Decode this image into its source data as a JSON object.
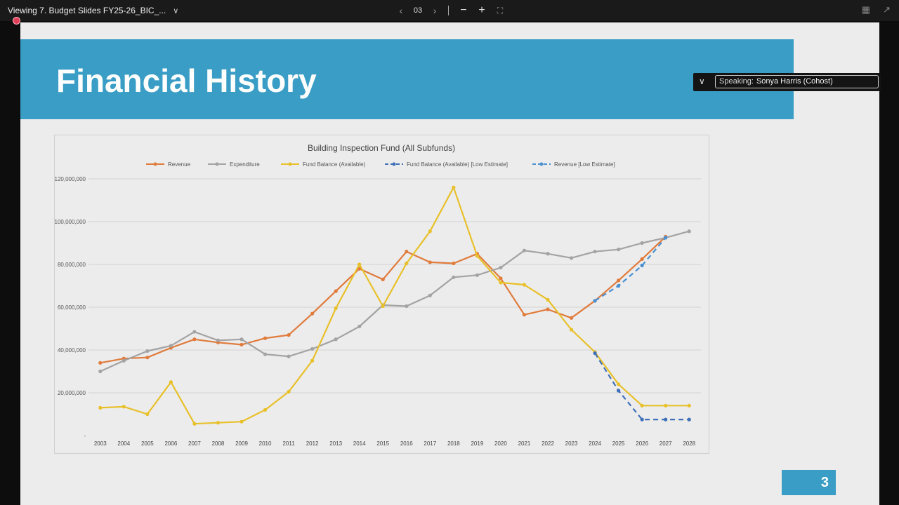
{
  "topbar": {
    "viewing_label": "Viewing 7. Budget Slides FY25-26_BIC_...",
    "page_number": "03",
    "prev_icon": "chevron-left-icon",
    "next_icon": "chevron-right-icon",
    "zoom_out_icon": "minus-icon",
    "zoom_in_icon": "plus-icon",
    "fit_icon": "fit-screen-icon"
  },
  "speaking": {
    "label": "Speaking:",
    "name": "Sonya Harris (Cohost)"
  },
  "slide": {
    "title": "Financial History",
    "page_number": "3"
  },
  "colors": {
    "banner": "#3a9dc6",
    "revenue": "#e07b3c",
    "expenditure": "#a3a3a3",
    "fund_balance": "#e8c02a",
    "fund_balance_low": "#3f6fb8",
    "revenue_low": "#4a90d0"
  },
  "chart_data": {
    "type": "line",
    "title": "Building Inspection Fund (All Subfunds)",
    "xlabel": "",
    "ylabel": "",
    "ylim": [
      0,
      120000000
    ],
    "yticks": [
      0,
      20000000,
      40000000,
      60000000,
      80000000,
      100000000,
      120000000
    ],
    "ytick_labels": [
      "-",
      "20,000,000",
      "40,000,000",
      "60,000,000",
      "80,000,000",
      "100,000,000",
      "120,000,000"
    ],
    "x": [
      "2003",
      "2004",
      "2005",
      "2006",
      "2007",
      "2008",
      "2009",
      "2010",
      "2011",
      "2012",
      "2013",
      "2014",
      "2015",
      "2016",
      "2017",
      "2018",
      "2019",
      "2020",
      "2021",
      "2022",
      "2023",
      "2024",
      "2025",
      "2026",
      "2027",
      "2028"
    ],
    "grid": "horizontal",
    "legend_position": "top",
    "series": [
      {
        "name": "Revenue",
        "color": "#e07b3c",
        "dashed": false,
        "values": [
          34000000,
          36000000,
          36500000,
          41000000,
          45000000,
          43500000,
          42500000,
          45500000,
          47000000,
          57000000,
          67500000,
          78000000,
          73000000,
          86000000,
          81000000,
          80500000,
          85000000,
          73500000,
          56500000,
          59000000,
          55000000,
          63000000,
          72500000,
          82500000,
          93000000,
          null
        ]
      },
      {
        "name": "Expenditure",
        "color": "#a3a3a3",
        "dashed": false,
        "values": [
          30000000,
          35000000,
          39500000,
          42000000,
          48500000,
          44500000,
          45000000,
          38000000,
          37000000,
          40500000,
          45000000,
          51000000,
          61000000,
          60500000,
          65500000,
          74000000,
          75000000,
          78500000,
          86500000,
          85000000,
          83000000,
          86000000,
          87000000,
          90000000,
          92500000,
          95500000
        ]
      },
      {
        "name": "Fund Balance (Available)",
        "color": "#e8c02a",
        "dashed": false,
        "values": [
          13000000,
          13500000,
          10000000,
          25000000,
          5500000,
          6000000,
          6500000,
          12000000,
          20500000,
          35000000,
          59500000,
          80000000,
          60500000,
          80500000,
          95500000,
          116000000,
          84000000,
          71500000,
          70500000,
          63500000,
          49500000,
          39000000,
          24000000,
          14000000,
          14000000,
          14000000
        ]
      },
      {
        "name": "Fund Balance (Available) [Low Estimate]",
        "color": "#3f6fb8",
        "dashed": true,
        "values": [
          null,
          null,
          null,
          null,
          null,
          null,
          null,
          null,
          null,
          null,
          null,
          null,
          null,
          null,
          null,
          null,
          null,
          null,
          null,
          null,
          null,
          38500000,
          21000000,
          7500000,
          7500000,
          7500000
        ]
      },
      {
        "name": "Revenue [Low Estimate]",
        "color": "#4a90d0",
        "dashed": true,
        "values": [
          null,
          null,
          null,
          null,
          null,
          null,
          null,
          null,
          null,
          null,
          null,
          null,
          null,
          null,
          null,
          null,
          null,
          null,
          null,
          null,
          null,
          63000000,
          70000000,
          79500000,
          92500000,
          null
        ]
      }
    ]
  }
}
